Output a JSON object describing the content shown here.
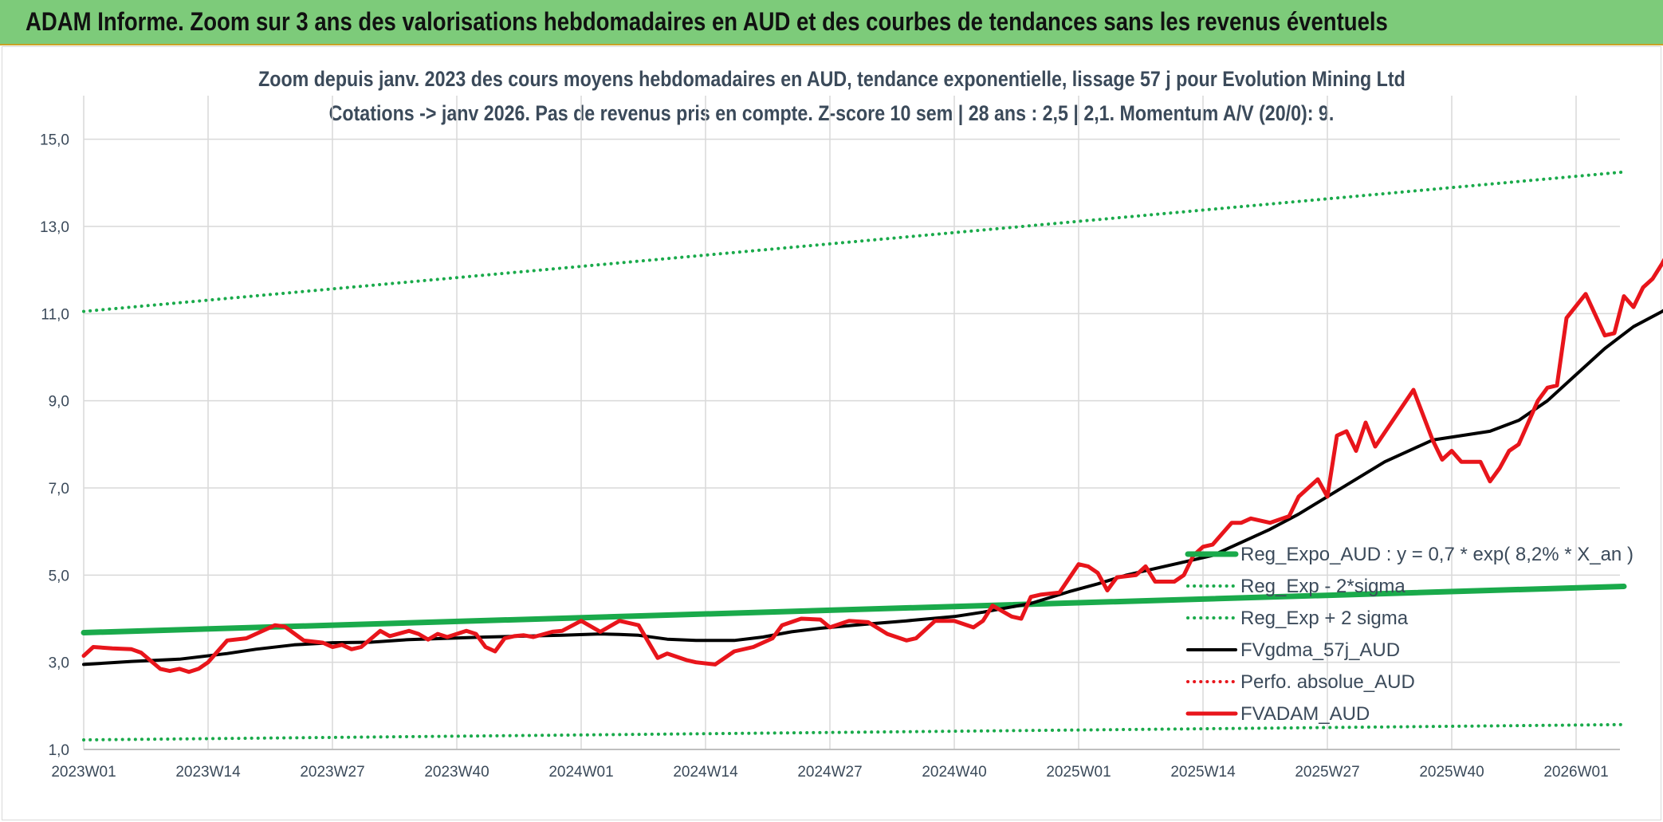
{
  "banner": {
    "title": "ADAM Informe. Zoom sur 3 ans des valorisations hebdomadaires en AUD et des courbes de tendances sans les revenus éventuels"
  },
  "colors": {
    "banner_bg": "#7dcb7a",
    "reg_expo": "#1aaa4b",
    "sigma": "#1aaa4b",
    "fvgdma": "#000000",
    "perfo": "#e8151b",
    "fvadam": "#e8151b",
    "grid": "#d9d9d9",
    "text": "#3b4a5a"
  },
  "chart_data": {
    "type": "line",
    "title": "Zoom depuis janv. 2023 des cours moyens hebdomadaires en AUD, tendance exponentielle, lissage 57 j pour Evolution Mining Ltd",
    "subtitle": "Cotations -> janv 2026. Pas de revenus pris en compte. Z-score 10 sem | 28 ans : 2,5 | 2,1. Momentum A/V (20/0): 9.",
    "xlabel": "",
    "ylabel": "",
    "ylim": [
      1.0,
      16.0
    ],
    "y_ticks": [
      "1,0",
      "3,0",
      "5,0",
      "7,0",
      "9,0",
      "11,0",
      "13,0",
      "15,0"
    ],
    "x_ticks": [
      "2023W01",
      "2023W14",
      "2023W27",
      "2023W40",
      "2024W01",
      "2024W14",
      "2024W27",
      "2024W40",
      "2025W01",
      "2025W14",
      "2025W27",
      "2025W40",
      "2026W01"
    ],
    "x_range_weeks": [
      0,
      161
    ],
    "grid": true,
    "legend_position": "bottom-right",
    "series": [
      {
        "name": "Reg_Expo_AUD : y = 0,7 * exp( 8,2% *  X_an )",
        "style": "thick-solid",
        "color": "#1aaa4b",
        "points": [
          [
            0,
            3.68
          ],
          [
            161,
            4.74
          ]
        ]
      },
      {
        "name": "Reg_Exp - 2*sigma",
        "style": "dotted",
        "color": "#1aaa4b",
        "points": [
          [
            0,
            1.22
          ],
          [
            161,
            1.57
          ]
        ]
      },
      {
        "name": "Reg_Exp + 2 sigma",
        "style": "dotted",
        "color": "#1aaa4b",
        "points": [
          [
            0,
            11.05
          ],
          [
            161,
            14.25
          ]
        ]
      },
      {
        "name": "FVgdma_57j_AUD",
        "style": "solid",
        "color": "#000000",
        "points": [
          [
            0,
            2.95
          ],
          [
            5,
            3.02
          ],
          [
            10,
            3.07
          ],
          [
            15,
            3.2
          ],
          [
            18,
            3.3
          ],
          [
            22,
            3.4
          ],
          [
            26,
            3.45
          ],
          [
            30,
            3.46
          ],
          [
            34,
            3.52
          ],
          [
            38,
            3.55
          ],
          [
            42,
            3.58
          ],
          [
            46,
            3.6
          ],
          [
            50,
            3.62
          ],
          [
            54,
            3.65
          ],
          [
            56,
            3.64
          ],
          [
            58,
            3.62
          ],
          [
            61,
            3.53
          ],
          [
            64,
            3.5
          ],
          [
            68,
            3.5
          ],
          [
            71,
            3.58
          ],
          [
            74,
            3.7
          ],
          [
            77,
            3.78
          ],
          [
            82,
            3.88
          ],
          [
            86,
            3.95
          ],
          [
            91,
            4.05
          ],
          [
            94,
            4.15
          ],
          [
            99,
            4.35
          ],
          [
            103,
            4.62
          ],
          [
            106,
            4.8
          ],
          [
            109,
            5.0
          ],
          [
            112,
            5.15
          ],
          [
            115,
            5.3
          ],
          [
            118,
            5.45
          ],
          [
            121,
            5.75
          ],
          [
            124,
            6.05
          ],
          [
            127,
            6.4
          ],
          [
            130,
            6.8
          ],
          [
            133,
            7.2
          ],
          [
            136,
            7.6
          ],
          [
            139,
            7.9
          ],
          [
            141,
            8.1
          ],
          [
            144,
            8.2
          ],
          [
            147,
            8.3
          ],
          [
            150,
            8.55
          ],
          [
            153,
            9.0
          ],
          [
            156,
            9.6
          ],
          [
            159,
            10.2
          ],
          [
            162,
            10.7
          ],
          [
            165,
            11.05
          ],
          [
            168,
            11.5
          ],
          [
            171,
            12.0
          ],
          [
            174,
            12.55
          ],
          [
            177,
            13.1
          ],
          [
            179,
            13.75
          ]
        ]
      },
      {
        "name": "Perfo. absolue_AUD",
        "style": "dotted",
        "color": "#e8151b",
        "points": []
      },
      {
        "name": "FVADAM_AUD",
        "style": "thick-solid",
        "color": "#e8151b",
        "points": [
          [
            0,
            3.15
          ],
          [
            1,
            3.35
          ],
          [
            3,
            3.32
          ],
          [
            5,
            3.3
          ],
          [
            6,
            3.22
          ],
          [
            8,
            2.85
          ],
          [
            9,
            2.8
          ],
          [
            10,
            2.85
          ],
          [
            11,
            2.78
          ],
          [
            12,
            2.85
          ],
          [
            13,
            3.0
          ],
          [
            15,
            3.5
          ],
          [
            17,
            3.55
          ],
          [
            18,
            3.65
          ],
          [
            20,
            3.85
          ],
          [
            21,
            3.82
          ],
          [
            23,
            3.5
          ],
          [
            25,
            3.45
          ],
          [
            26,
            3.35
          ],
          [
            27,
            3.4
          ],
          [
            28,
            3.3
          ],
          [
            29,
            3.35
          ],
          [
            31,
            3.72
          ],
          [
            32,
            3.6
          ],
          [
            34,
            3.72
          ],
          [
            35,
            3.65
          ],
          [
            36,
            3.52
          ],
          [
            37,
            3.65
          ],
          [
            38,
            3.58
          ],
          [
            40,
            3.72
          ],
          [
            41,
            3.65
          ],
          [
            42,
            3.35
          ],
          [
            43,
            3.25
          ],
          [
            44,
            3.55
          ],
          [
            45,
            3.6
          ],
          [
            46,
            3.62
          ],
          [
            47,
            3.58
          ],
          [
            49,
            3.7
          ],
          [
            50,
            3.72
          ],
          [
            52,
            3.95
          ],
          [
            54,
            3.7
          ],
          [
            56,
            3.95
          ],
          [
            58,
            3.85
          ],
          [
            60,
            3.1
          ],
          [
            61,
            3.2
          ],
          [
            63,
            3.05
          ],
          [
            64,
            3.0
          ],
          [
            66,
            2.95
          ],
          [
            68,
            3.25
          ],
          [
            70,
            3.35
          ],
          [
            72,
            3.55
          ],
          [
            73,
            3.85
          ],
          [
            75,
            4.0
          ],
          [
            77,
            3.98
          ],
          [
            78,
            3.8
          ],
          [
            80,
            3.95
          ],
          [
            82,
            3.92
          ],
          [
            84,
            3.65
          ],
          [
            86,
            3.5
          ],
          [
            87,
            3.55
          ],
          [
            89,
            3.95
          ],
          [
            91,
            3.95
          ],
          [
            93,
            3.8
          ],
          [
            94,
            3.95
          ],
          [
            95,
            4.3
          ],
          [
            97,
            4.05
          ],
          [
            98,
            4.0
          ],
          [
            99,
            4.5
          ],
          [
            100,
            4.55
          ],
          [
            102,
            4.6
          ],
          [
            104,
            5.25
          ],
          [
            105,
            5.2
          ],
          [
            106,
            5.05
          ],
          [
            107,
            4.65
          ],
          [
            108,
            4.95
          ],
          [
            110,
            5.0
          ],
          [
            111,
            5.2
          ],
          [
            112,
            4.85
          ],
          [
            114,
            4.85
          ],
          [
            115,
            5.0
          ],
          [
            116,
            5.45
          ],
          [
            117,
            5.65
          ],
          [
            118,
            5.7
          ],
          [
            119,
            5.95
          ],
          [
            120,
            6.2
          ],
          [
            121,
            6.2
          ],
          [
            122,
            6.3
          ],
          [
            124,
            6.2
          ],
          [
            126,
            6.35
          ],
          [
            127,
            6.8
          ],
          [
            129,
            7.2
          ],
          [
            130,
            6.8
          ],
          [
            131,
            8.2
          ],
          [
            132,
            8.3
          ],
          [
            133,
            7.85
          ],
          [
            134,
            8.5
          ],
          [
            135,
            7.95
          ],
          [
            137,
            8.6
          ],
          [
            139,
            9.25
          ],
          [
            141,
            8.1
          ],
          [
            142,
            7.65
          ],
          [
            143,
            7.85
          ],
          [
            144,
            7.6
          ],
          [
            146,
            7.6
          ],
          [
            147,
            7.15
          ],
          [
            148,
            7.45
          ],
          [
            149,
            7.85
          ],
          [
            150,
            8.0
          ],
          [
            151,
            8.5
          ],
          [
            152,
            9.0
          ],
          [
            153,
            9.3
          ],
          [
            154,
            9.35
          ],
          [
            155,
            10.9
          ],
          [
            157,
            11.45
          ],
          [
            159,
            10.5
          ],
          [
            160,
            10.55
          ],
          [
            161,
            11.4
          ],
          [
            162,
            11.15
          ],
          [
            163,
            11.6
          ],
          [
            164,
            11.8
          ],
          [
            165,
            12.15
          ],
          [
            167,
            12.95
          ],
          [
            168,
            12.7
          ],
          [
            170,
            13.1
          ],
          [
            172,
            15.15
          ]
        ]
      }
    ]
  }
}
